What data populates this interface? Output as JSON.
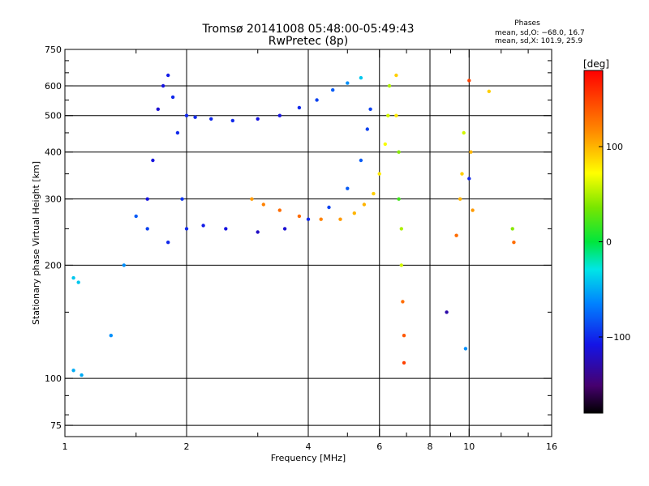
{
  "chart_data": {
    "type": "scatter",
    "title": "Tromsø 20141008 05:48:00-05:49:43",
    "subtitle": "RwPretec (8p)",
    "xlabel": "Frequency [MHz]",
    "ylabel": "Stationary phase Virtual Height [km]",
    "x_scale": "log2",
    "y_scale": "log",
    "xlim": [
      1,
      16
    ],
    "ylim": [
      70,
      750
    ],
    "x_ticks": [
      1,
      2,
      4,
      6,
      8,
      10,
      16
    ],
    "x_tick_labels": [
      "1",
      "2",
      "4",
      "6",
      "8",
      "10",
      "16"
    ],
    "y_ticks": [
      75,
      100,
      200,
      300,
      400,
      500,
      600,
      750
    ],
    "y_tick_labels": [
      "75",
      "100",
      "200",
      "300",
      "400",
      "500",
      "600",
      "750"
    ],
    "grid": true,
    "stats": {
      "heading": "Phases",
      "line1": "mean, sd,O: −68.0, 16.7",
      "line2": "mean, sd,X: 101.9, 25.9"
    },
    "colorbar": {
      "unit_label": "[deg]",
      "range": [
        -180,
        180
      ],
      "ticks": [
        100,
        0,
        -100
      ],
      "tick_labels": [
        "100",
        "0",
        "−100"
      ],
      "colormap": "rainbow"
    },
    "series": [
      {
        "values": [
          [
            1.6,
            300,
            -110
          ],
          [
            1.65,
            380,
            -110
          ],
          [
            1.7,
            520,
            -115
          ],
          [
            1.75,
            600,
            -110
          ],
          [
            1.8,
            640,
            -105
          ],
          [
            1.85,
            560,
            -100
          ],
          [
            1.9,
            450,
            -100
          ],
          [
            1.95,
            300,
            -95
          ],
          [
            2.0,
            500,
            -100
          ],
          [
            2.1,
            495,
            -100
          ],
          [
            2.3,
            490,
            -100
          ],
          [
            2.6,
            485,
            -100
          ],
          [
            3.0,
            490,
            -110
          ],
          [
            3.4,
            500,
            -110
          ],
          [
            3.8,
            525,
            -100
          ],
          [
            4.2,
            550,
            -90
          ],
          [
            4.6,
            585,
            -80
          ],
          [
            5.0,
            610,
            -60
          ],
          [
            5.4,
            630,
            -40
          ]
        ]
      },
      {
        "values": [
          [
            1.05,
            185,
            -40
          ],
          [
            1.08,
            180,
            -40
          ],
          [
            1.05,
            105,
            -50
          ],
          [
            1.1,
            102,
            -50
          ],
          [
            1.3,
            130,
            -60
          ],
          [
            1.4,
            200,
            -60
          ],
          [
            1.5,
            270,
            -80
          ],
          [
            1.6,
            250,
            -90
          ],
          [
            1.8,
            230,
            -100
          ],
          [
            2.0,
            250,
            -100
          ],
          [
            2.2,
            255,
            -105
          ],
          [
            2.5,
            250,
            -110
          ],
          [
            3.0,
            245,
            -120
          ],
          [
            3.5,
            250,
            -115
          ],
          [
            4.0,
            265,
            -100
          ],
          [
            4.5,
            285,
            -90
          ],
          [
            5.0,
            320,
            -80
          ],
          [
            5.4,
            380,
            -80
          ],
          [
            5.6,
            460,
            -90
          ],
          [
            5.7,
            520,
            -90
          ]
        ]
      },
      {
        "values": [
          [
            2.9,
            300,
            110
          ],
          [
            3.1,
            290,
            120
          ],
          [
            3.4,
            280,
            130
          ],
          [
            3.8,
            270,
            130
          ],
          [
            4.3,
            265,
            120
          ],
          [
            4.8,
            265,
            110
          ],
          [
            5.2,
            275,
            100
          ],
          [
            5.5,
            290,
            100
          ],
          [
            5.8,
            310,
            90
          ],
          [
            6.0,
            350,
            80
          ],
          [
            6.2,
            420,
            70
          ],
          [
            6.3,
            500,
            60
          ],
          [
            6.35,
            600,
            50
          ]
        ]
      },
      {
        "values": [
          [
            6.6,
            640,
            90
          ],
          [
            6.6,
            500,
            80
          ],
          [
            6.7,
            400,
            40
          ],
          [
            6.7,
            300,
            20
          ],
          [
            6.8,
            250,
            50
          ],
          [
            6.8,
            200,
            60
          ],
          [
            6.85,
            160,
            130
          ],
          [
            6.9,
            130,
            140
          ],
          [
            6.9,
            110,
            150
          ]
        ]
      },
      {
        "values": [
          [
            8.8,
            150,
            -130
          ],
          [
            9.3,
            240,
            130
          ],
          [
            9.5,
            300,
            100
          ],
          [
            9.6,
            350,
            90
          ],
          [
            9.7,
            450,
            60
          ],
          [
            9.8,
            120,
            -60
          ],
          [
            10.0,
            620,
            150
          ],
          [
            10.0,
            340,
            -100
          ],
          [
            10.1,
            400,
            100
          ],
          [
            10.2,
            280,
            110
          ],
          [
            11.2,
            580,
            90
          ],
          [
            12.8,
            250,
            40
          ],
          [
            12.9,
            230,
            130
          ]
        ]
      }
    ]
  }
}
